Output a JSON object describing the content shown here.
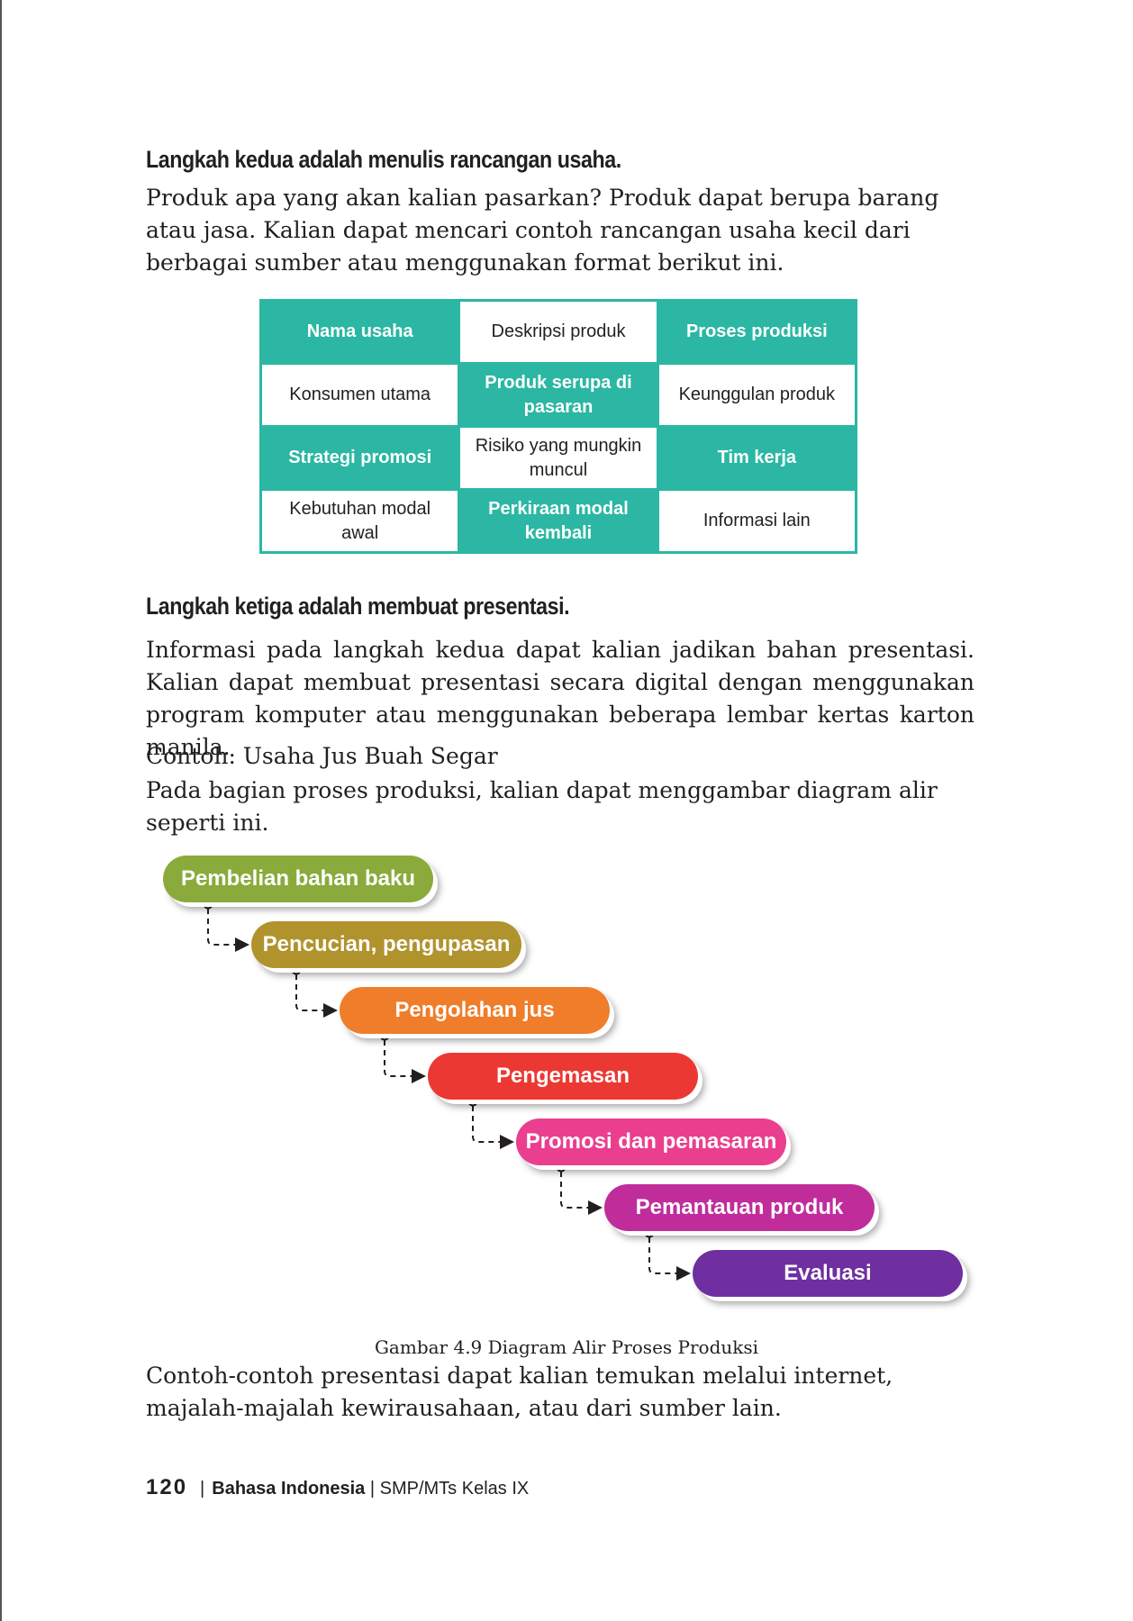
{
  "section2": {
    "heading": "Langkah kedua adalah menulis rancangan usaha.",
    "paragraph": "Produk apa yang akan kalian pasarkan? Produk dapat berupa barang atau jasa. Kalian dapat mencari contoh rancangan usaha kecil dari berbagai sumber atau menggunakan format berikut ini."
  },
  "plan_table": {
    "rows": [
      [
        "Nama usaha",
        "Deskripsi produk",
        "Proses produksi"
      ],
      [
        "Konsumen utama",
        "Produk serupa di pasaran",
        "Keunggulan produk"
      ],
      [
        "Strategi promosi",
        "Risiko yang mungkin muncul",
        "Tim kerja"
      ],
      [
        "Kebutuhan modal awal",
        "Perkiraan modal kembali",
        "Informasi lain"
      ]
    ],
    "highlight_color": "#2bb7a3"
  },
  "section3": {
    "heading": "Langkah ketiga adalah membuat presentasi.",
    "paragraph": "Informasi pada langkah kedua dapat kalian jadikan bahan presentasi. Kalian dapat membuat presentasi secara digital dengan menggunakan program komputer atau menggunakan beberapa lembar kertas karton manila.",
    "example": "Contoh: Usaha Jus Buah Segar",
    "intro": "Pada bagian proses produksi, kalian dapat menggambar diagram alir seperti ini."
  },
  "flow": {
    "steps": [
      {
        "label": "Pembelian bahan baku",
        "color": "#8aab3c"
      },
      {
        "label": "Pencucian, pengupasan",
        "color": "#b0932c"
      },
      {
        "label": "Pengolahan jus",
        "color": "#ef7d2a"
      },
      {
        "label": "Pengemasan",
        "color": "#ec3833"
      },
      {
        "label": "Promosi dan pemasaran",
        "color": "#ea3f8e"
      },
      {
        "label": "Pemantauan produk",
        "color": "#c02d9b"
      },
      {
        "label": "Evaluasi",
        "color": "#6f2fa0"
      }
    ],
    "caption": "Gambar 4.9 Diagram Alir Proses Produksi"
  },
  "closing": "Contoh-contoh presentasi dapat kalian temukan melalui internet, majalah-majalah kewirausahaan, atau dari sumber lain.",
  "footer": {
    "page_number": "120",
    "separator": "|",
    "subject": "Bahasa Indonesia",
    "rest": "| SMP/MTs Kelas IX"
  }
}
